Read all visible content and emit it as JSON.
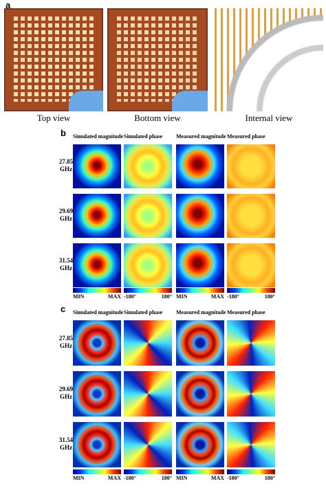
{
  "panel_a": {
    "label": "a",
    "captions": [
      "Top view",
      "Bottom view",
      "Internal view"
    ]
  },
  "panel_b": {
    "label": "b",
    "columns": [
      "Simulated magnitude",
      "Simulated phase",
      "Measured magnitude",
      "Measured phase"
    ],
    "rows": [
      [
        "27.85",
        "GHz"
      ],
      [
        "29.69",
        "GHz"
      ],
      [
        "31.54",
        "GHz"
      ]
    ],
    "colorbars": [
      {
        "min": "MIN",
        "max": "MAX"
      },
      {
        "min": "-180°",
        "max": "180°"
      },
      {
        "min": "MIN",
        "max": "MAX"
      },
      {
        "min": "-180°",
        "max": "180°"
      }
    ]
  },
  "panel_c": {
    "label": "c",
    "columns": [
      "Simulated magnitude",
      "Simulated phase",
      "Measured magnitude",
      "Measured phase"
    ],
    "rows": [
      [
        "27.85",
        "GHz"
      ],
      [
        "29.69",
        "GHz"
      ],
      [
        "31.54",
        "GHz"
      ]
    ],
    "colorbars": [
      {
        "min": "MIN",
        "max": "MAX"
      },
      {
        "min": "-180°",
        "max": "180°"
      },
      {
        "min": "MIN",
        "max": "MAX"
      },
      {
        "min": "-180°",
        "max": "180°"
      }
    ]
  }
}
